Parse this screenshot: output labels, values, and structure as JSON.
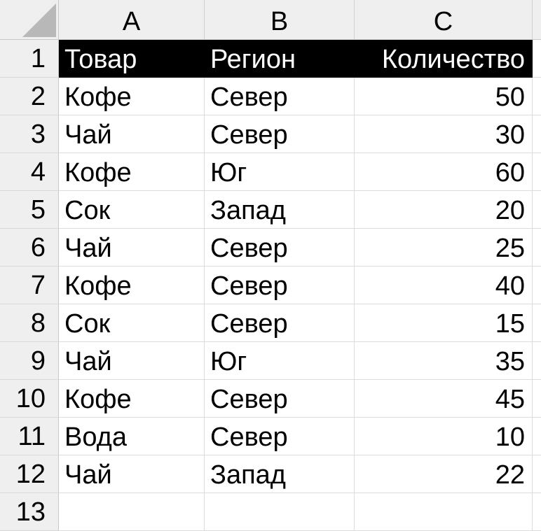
{
  "columns": [
    "A",
    "B",
    "C"
  ],
  "header": [
    "Товар",
    "Регион",
    "Количество"
  ],
  "rows": [
    [
      "Кофе",
      "Север",
      "50"
    ],
    [
      "Чай",
      "Север",
      "30"
    ],
    [
      "Кофе",
      "Юг",
      "60"
    ],
    [
      "Сок",
      "Запад",
      "20"
    ],
    [
      "Чай",
      "Север",
      "25"
    ],
    [
      "Кофе",
      "Север",
      "40"
    ],
    [
      "Сок",
      "Север",
      "15"
    ],
    [
      "Чай",
      "Юг",
      "35"
    ],
    [
      "Кофе",
      "Север",
      "45"
    ],
    [
      "Вода",
      "Север",
      "10"
    ],
    [
      "Чай",
      "Запад",
      "22"
    ]
  ],
  "row_numbers": [
    "1",
    "2",
    "3",
    "4",
    "5",
    "6",
    "7",
    "8",
    "9",
    "10",
    "11",
    "12",
    "13"
  ],
  "colors": {
    "header_fill": "#000000",
    "header_text": "#ffffff",
    "chrome": "#efefef"
  }
}
